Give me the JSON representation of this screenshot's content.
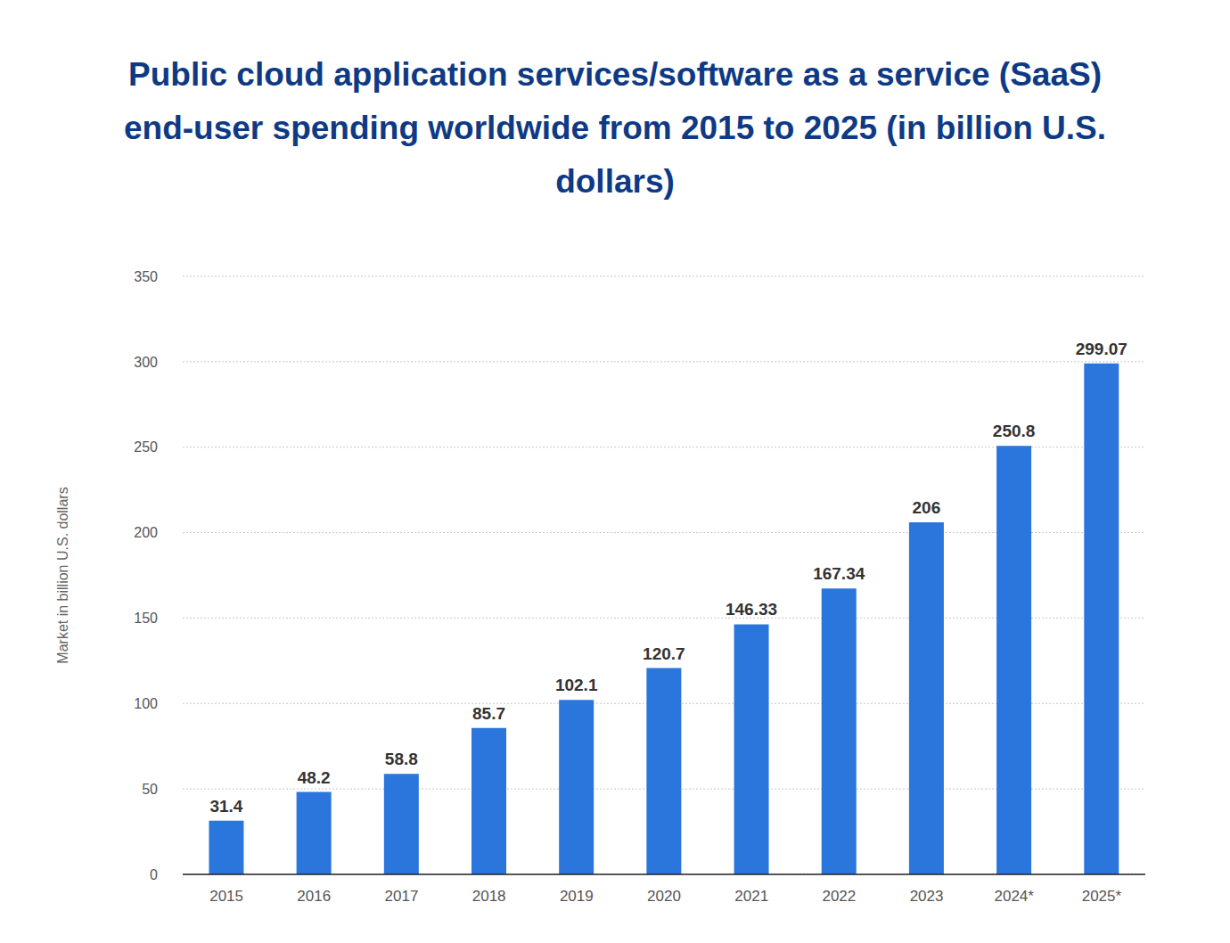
{
  "chart_data": {
    "type": "bar",
    "title": "Public cloud application services/software as a service (SaaS) end-user spending worldwide from 2015 to 2025 (in billion U.S. dollars)",
    "y_label": "Market in billion U.S. dollars",
    "categories": [
      "2015",
      "2016",
      "2017",
      "2018",
      "2019",
      "2020",
      "2021",
      "2022",
      "2023",
      "2024*",
      "2025*"
    ],
    "values": [
      31.4,
      48.2,
      58.8,
      85.7,
      102.1,
      120.7,
      146.33,
      167.34,
      206,
      250.8,
      299.07
    ],
    "color": "#2a76dd",
    "ylim": [
      0,
      350
    ],
    "yticks": [
      0,
      50,
      100,
      150,
      200,
      250,
      300,
      350
    ],
    "grid": true,
    "data_labels": true
  }
}
